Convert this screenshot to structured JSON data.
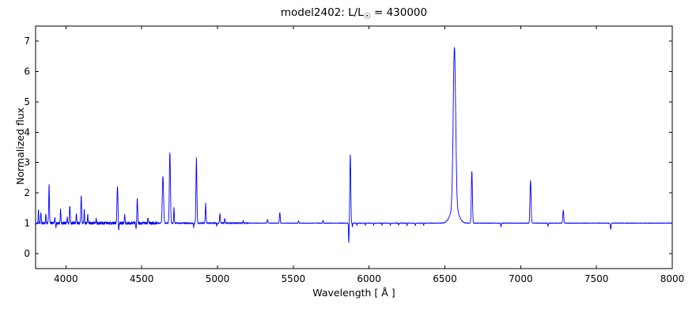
{
  "chart_data": {
    "type": "line",
    "title": "model2402: L/L☉ = 430000",
    "title_prefix": "model2402: L/L",
    "title_sub": "☉",
    "title_suffix": " = 430000",
    "xlabel": "Wavelength [ Å ]",
    "ylabel": "Normalized flux",
    "xlim": [
      3800,
      8000
    ],
    "ylim": [
      -0.5,
      7.5
    ],
    "xticks": [
      4000,
      4500,
      5000,
      5500,
      6000,
      6500,
      7000,
      7500,
      8000
    ],
    "yticks": [
      0,
      1,
      2,
      3,
      4,
      5,
      6,
      7
    ],
    "line_color": "#0000ff",
    "frame_color": "#000000",
    "continuum": 1.0,
    "emission_lines": [
      [
        3819,
        1.45,
        2
      ],
      [
        3835,
        1.35,
        2
      ],
      [
        3868,
        1.3,
        2
      ],
      [
        3889,
        2.25,
        2.5
      ],
      [
        3927,
        1.2,
        2
      ],
      [
        3965,
        1.45,
        2
      ],
      [
        4009,
        1.2,
        2
      ],
      [
        4026,
        1.55,
        2.5
      ],
      [
        4069,
        1.35,
        2
      ],
      [
        4101,
        1.9,
        2.5
      ],
      [
        4121,
        1.45,
        2
      ],
      [
        4144,
        1.3,
        2
      ],
      [
        4200,
        1.15,
        2
      ],
      [
        4340,
        2.2,
        3
      ],
      [
        4388,
        1.3,
        2
      ],
      [
        4471,
        1.8,
        2.5
      ],
      [
        4542,
        1.2,
        2
      ],
      [
        4640,
        2.55,
        4
      ],
      [
        4686,
        3.3,
        3.5
      ],
      [
        4713,
        1.5,
        2
      ],
      [
        4861,
        3.15,
        3
      ],
      [
        4922,
        1.65,
        2.5
      ],
      [
        5016,
        1.3,
        2.5
      ],
      [
        5048,
        1.15,
        2
      ],
      [
        5169,
        1.08,
        2
      ],
      [
        5330,
        1.12,
        2.5
      ],
      [
        5411,
        1.35,
        2.5
      ],
      [
        5535,
        1.08,
        2
      ],
      [
        5696,
        1.1,
        2
      ],
      [
        5876,
        3.25,
        3
      ],
      [
        6563,
        6.25,
        8
      ],
      [
        6563,
        1.55,
        25
      ],
      [
        6678,
        2.7,
        3.5
      ],
      [
        7065,
        2.4,
        3.5
      ],
      [
        7281,
        1.42,
        3
      ]
    ],
    "absorption_lines": [
      [
        3934,
        0.85,
        1.5
      ],
      [
        4348,
        0.72,
        2
      ],
      [
        4463,
        0.78,
        2
      ],
      [
        4843,
        0.85,
        1.5
      ],
      [
        4995,
        0.9,
        1.5
      ],
      [
        5866,
        0.35,
        1.8
      ],
      [
        5890,
        0.88,
        1.5
      ],
      [
        5920,
        0.93,
        1.5
      ],
      [
        5975,
        0.93,
        1.5
      ],
      [
        6030,
        0.93,
        1.5
      ],
      [
        6085,
        0.93,
        1.5
      ],
      [
        6140,
        0.93,
        1.5
      ],
      [
        6195,
        0.93,
        1.5
      ],
      [
        6250,
        0.92,
        1.5
      ],
      [
        6305,
        0.92,
        1.5
      ],
      [
        6360,
        0.92,
        1.5
      ],
      [
        6870,
        0.88,
        2
      ],
      [
        7180,
        0.9,
        2
      ],
      [
        7594,
        0.8,
        2.5
      ]
    ],
    "noise": {
      "regions": [
        [
          3800,
          4600,
          0.045
        ],
        [
          4600,
          5200,
          0.022
        ],
        [
          5200,
          8000,
          0.009
        ]
      ]
    }
  }
}
